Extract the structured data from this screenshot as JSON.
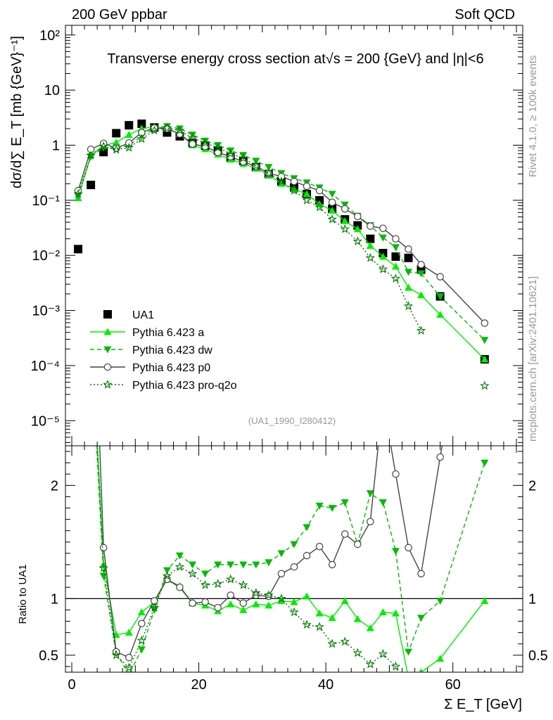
{
  "header": {
    "energy_label": "200 GeV ppbar",
    "category_label": "Soft QCD"
  },
  "side_labels": {
    "version": "Rivet 4.1.0, ≥ 100k events",
    "source": "mcplots.cern.ch [arXiv:2401.10621]"
  },
  "colors": {
    "data": "#000000",
    "pythia_a": "#00ee00",
    "pythia_dw": "#00bb00",
    "pythia_p0": "#444444",
    "pythia_pro_q2o": "#007700"
  },
  "chart_data": [
    {
      "type": "scatter",
      "title": "Transverse energy cross section at√s = 200 {GeV} and |η|<6",
      "ylabel": "dσ/d∑ E_T [mb {GeV}⁻¹]",
      "xlabel": "Σ E_T [GeV]",
      "yscale": "log",
      "xlim": [
        -1,
        71
      ],
      "ylim": [
        3.5e-06,
        150
      ],
      "ytick_labels": [
        "10⁻⁵",
        "10⁻⁴",
        "10⁻³",
        "10⁻²",
        "10⁻¹",
        "1",
        "10",
        "10²"
      ],
      "analysis_id": "(UA1_1990_I280412)",
      "legend_position": "bottom-left",
      "x": [
        1,
        3,
        5,
        7,
        9,
        11,
        13,
        15,
        17,
        19,
        21,
        23,
        25,
        27,
        29,
        31,
        33,
        35,
        37,
        39,
        41,
        43,
        45,
        47,
        49,
        51,
        53,
        55,
        58,
        65
      ],
      "series": [
        {
          "name": "UA1",
          "marker": "square",
          "line": "none",
          "values": [
            0.013,
            0.19,
            0.75,
            1.65,
            2.3,
            2.45,
            2.1,
            1.7,
            1.45,
            1.1,
            0.98,
            0.8,
            0.6,
            0.52,
            0.4,
            0.3,
            0.22,
            0.17,
            0.13,
            0.1,
            0.07,
            0.045,
            0.035,
            0.02,
            0.011,
            0.0095,
            0.009,
            0.0055,
            0.0018,
            0.00013
          ]
        },
        {
          "name": "Pythia 6.423 a",
          "marker": "triangle-up",
          "line": "solid",
          "values": [
            0.11,
            0.66,
            0.98,
            1.12,
            1.55,
            2.0,
            2.15,
            2.0,
            1.6,
            1.0,
            0.85,
            0.68,
            0.55,
            0.46,
            0.38,
            0.29,
            0.2,
            0.16,
            0.13,
            0.085,
            0.065,
            0.042,
            0.03,
            0.015,
            0.0095,
            0.0063,
            0.0026,
            0.0019,
            0.00084,
            0.00013
          ]
        },
        {
          "name": "Pythia 6.423 dw",
          "marker": "triangle-down",
          "line": "dashed",
          "values": [
            0.12,
            0.62,
            0.9,
            0.9,
            1.0,
            1.45,
            2.05,
            2.2,
            2.0,
            1.55,
            1.2,
            1.0,
            0.8,
            0.66,
            0.52,
            0.4,
            0.31,
            0.25,
            0.21,
            0.17,
            0.13,
            0.083,
            0.052,
            0.035,
            0.021,
            0.014,
            0.005,
            0.0047,
            0.0018,
            0.00029
          ]
        },
        {
          "name": "Pythia 6.423 p0",
          "marker": "circle-open",
          "line": "solid",
          "values": [
            0.15,
            0.84,
            1.08,
            0.88,
            1.1,
            1.7,
            2.05,
            2.0,
            1.6,
            1.05,
            0.95,
            0.74,
            0.62,
            0.5,
            0.41,
            0.31,
            0.27,
            0.22,
            0.18,
            0.15,
            0.092,
            0.07,
            0.051,
            0.034,
            0.031,
            0.02,
            0.013,
            0.0068,
            0.0041,
            0.00059
          ]
        },
        {
          "name": "Pythia 6.423 pro-q2o",
          "marker": "star-open",
          "line": "dotted",
          "values": [
            0.13,
            0.65,
            0.95,
            0.83,
            0.9,
            1.3,
            1.85,
            2.05,
            1.85,
            1.35,
            1.1,
            0.9,
            0.7,
            0.58,
            0.42,
            0.31,
            0.22,
            0.15,
            0.1,
            0.075,
            0.045,
            0.03,
            0.018,
            0.009,
            0.0056,
            0.0038,
            0.0012,
            0.00043,
            null,
            4.3e-05
          ]
        }
      ]
    },
    {
      "type": "scatter",
      "ylabel": "Ratio to UA1",
      "xlabel": "Σ E_T [GeV]",
      "xlim": [
        -1,
        71
      ],
      "ylim": [
        0.35,
        2.35
      ],
      "xticks": [
        0,
        20,
        40,
        60
      ],
      "yticks_left": [
        0.5,
        1,
        2
      ],
      "yticks_right": [
        0.5,
        1,
        2
      ],
      "reference_line": 1,
      "x": [
        1,
        3,
        5,
        7,
        9,
        11,
        13,
        15,
        17,
        19,
        21,
        23,
        25,
        27,
        29,
        31,
        33,
        35,
        37,
        39,
        41,
        43,
        45,
        47,
        49,
        51,
        53,
        55,
        58,
        65
      ],
      "series": [
        {
          "name": "Pythia 6.423 a",
          "values": [
            8.5,
            3.5,
            1.3,
            0.68,
            0.7,
            0.88,
            0.97,
            1.17,
            1.11,
            0.96,
            0.94,
            0.89,
            0.95,
            0.9,
            0.95,
            0.94,
            0.98,
            0.97,
            1.02,
            0.87,
            0.83,
            0.98,
            0.82,
            0.74,
            0.88,
            0.87,
            0.3,
            0.35,
            0.47,
            0.98
          ]
        },
        {
          "name": "Pythia 6.423 dw",
          "values": [
            9.2,
            3.3,
            1.2,
            0.52,
            0.33,
            0.55,
            0.9,
            1.25,
            1.38,
            1.3,
            1.22,
            1.3,
            1.3,
            1.3,
            1.3,
            1.32,
            1.4,
            1.48,
            1.63,
            1.82,
            1.8,
            1.85,
            1.48,
            1.93,
            1.85,
            1.42,
            0.53,
            0.83,
            0.98,
            2.2
          ]
        },
        {
          "name": "Pythia 6.423 p0",
          "values": [
            11.5,
            4.4,
            1.45,
            0.53,
            0.48,
            0.78,
            0.98,
            1.17,
            1.1,
            0.96,
            0.97,
            0.92,
            1.03,
            0.96,
            1.03,
            1.02,
            1.22,
            1.28,
            1.38,
            1.46,
            1.3,
            1.57,
            1.48,
            1.68,
            2.75,
            2.1,
            1.45,
            1.22,
            2.25,
            4.5
          ]
        },
        {
          "name": "Pythia 6.423 pro-q2o",
          "values": [
            10.0,
            3.4,
            1.27,
            0.5,
            0.39,
            0.63,
            0.92,
            1.2,
            1.28,
            1.22,
            1.12,
            1.13,
            1.17,
            1.12,
            1.05,
            1.03,
            1.0,
            0.88,
            0.77,
            0.75,
            0.6,
            0.62,
            0.52,
            0.42,
            0.51,
            0.4,
            0.13,
            0.08,
            null,
            0.33
          ]
        }
      ]
    }
  ]
}
